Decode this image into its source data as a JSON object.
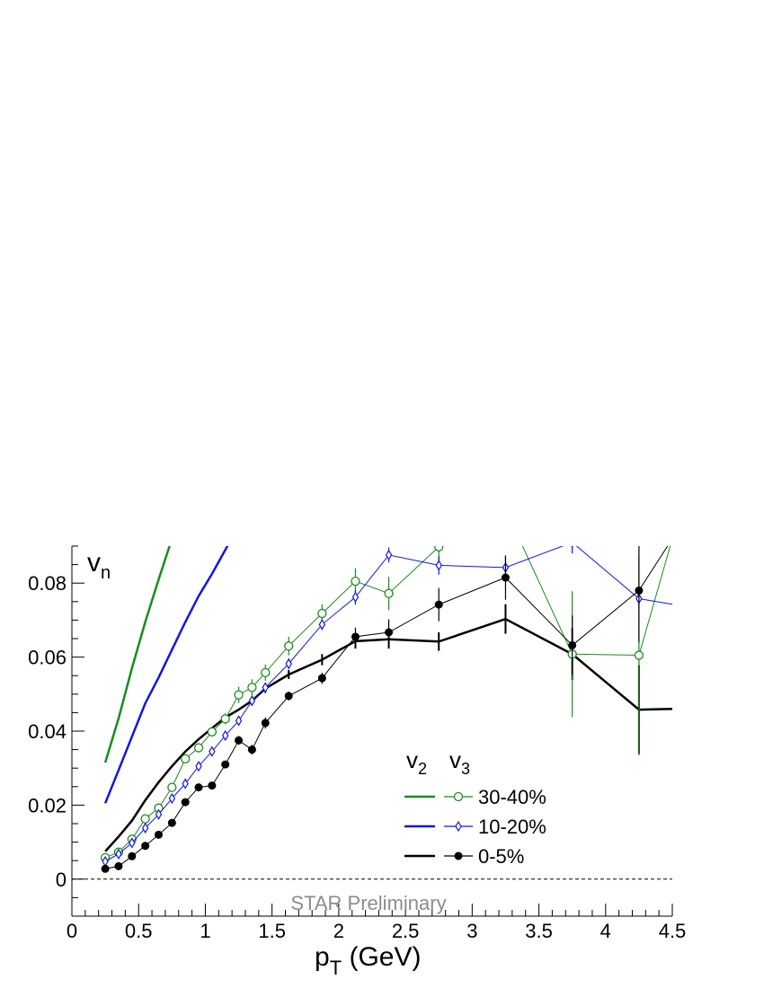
{
  "chart_data": {
    "type": "line",
    "title": "",
    "xlabel_main": "p",
    "xlabel_sub": "T",
    "xlabel_rest": " (GeV)",
    "ylabel_main": "v",
    "ylabel_sub": "n",
    "xlim": [
      0,
      4.5
    ],
    "ylim": [
      -0.01,
      0.09
    ],
    "xticks": [
      0,
      0.5,
      1,
      1.5,
      2,
      2.5,
      3,
      3.5,
      4,
      4.5
    ],
    "xtick_labels": [
      "0",
      "0.5",
      "1",
      "1.5",
      "2",
      "2.5",
      "3",
      "3.5",
      "4",
      "4.5"
    ],
    "yticks": [
      0,
      0.02,
      0.04,
      0.06,
      0.08
    ],
    "ytick_labels": [
      "0",
      "0.02",
      "0.04",
      "0.06",
      "0.08"
    ],
    "zero_line": "dashed",
    "watermark": "STAR Preliminary",
    "legend": {
      "header_v2_main": "v",
      "header_v2_sub": "2",
      "header_v3_main": "v",
      "header_v3_sub": "3",
      "position": "lower-right",
      "entries": [
        "30-40%",
        "10-20%",
        "0-5%"
      ]
    },
    "series": [
      {
        "name": "30-40%",
        "harmonic": "v2",
        "color": "#1a8c1a",
        "x": [
          0.25,
          0.35,
          0.45,
          0.55,
          0.65,
          0.75
        ],
        "y": [
          0.0315,
          0.0435,
          0.057,
          0.0695,
          0.081,
          0.092
        ]
      },
      {
        "name": "10-20%",
        "harmonic": "v2",
        "color": "#1414e6",
        "x": [
          0.25,
          0.35,
          0.45,
          0.55,
          0.65,
          0.75,
          0.85,
          0.95,
          1.05,
          1.15,
          1.25
        ],
        "y": [
          0.0205,
          0.0295,
          0.0385,
          0.0475,
          0.0545,
          0.062,
          0.0695,
          0.0765,
          0.0825,
          0.089,
          0.0955
        ]
      },
      {
        "name": "0-5%",
        "harmonic": "v2",
        "color": "#000000",
        "x": [
          0.25,
          0.35,
          0.45,
          0.55,
          0.65,
          0.75,
          0.85,
          0.95,
          1.05,
          1.15,
          1.25,
          1.35,
          1.45,
          1.625,
          1.875,
          2.125,
          2.375,
          2.75,
          3.25,
          3.75,
          4.25,
          4.5
        ],
        "y": [
          0.0075,
          0.0115,
          0.0158,
          0.0213,
          0.0262,
          0.0305,
          0.0345,
          0.0378,
          0.0408,
          0.0437,
          0.0458,
          0.0482,
          0.0515,
          0.0553,
          0.0593,
          0.0643,
          0.0648,
          0.0642,
          0.0703,
          0.0608,
          0.0458,
          0.046
        ],
        "err": [
          0,
          0,
          0,
          0,
          0,
          0,
          0,
          0,
          0,
          0,
          0,
          0.0012,
          0.0012,
          0.0012,
          0.0015,
          0.002,
          0.0025,
          0.0025,
          0.004,
          0.007,
          0.012,
          0
        ]
      },
      {
        "name": "30-40%",
        "harmonic": "v3",
        "color": "#1a8c1a",
        "marker": "open-circle",
        "x": [
          0.25,
          0.35,
          0.45,
          0.55,
          0.65,
          0.75,
          0.85,
          0.95,
          1.05,
          1.15,
          1.25,
          1.35,
          1.45,
          1.625,
          1.875,
          2.125,
          2.375,
          2.75,
          3.25,
          3.75,
          4.25,
          4.5
        ],
        "y": [
          0.0058,
          0.0073,
          0.0108,
          0.0163,
          0.0192,
          0.0248,
          0.0325,
          0.0355,
          0.0398,
          0.0433,
          0.0498,
          0.0518,
          0.0558,
          0.063,
          0.0718,
          0.0805,
          0.0772,
          0.0898,
          0.1,
          0.0608,
          0.0605,
          0.092
        ],
        "err": [
          0.0004,
          0.0004,
          0.0005,
          0.0006,
          0.0008,
          0.001,
          0.0012,
          0.0012,
          0.0013,
          0.0015,
          0.0022,
          0.0022,
          0.0022,
          0.0025,
          0.0025,
          0.0035,
          0.0045,
          0.005,
          0.01,
          0.017,
          0.027,
          0
        ]
      },
      {
        "name": "10-20%",
        "harmonic": "v3",
        "color": "#1414e6",
        "marker": "open-diamond",
        "x": [
          0.25,
          0.35,
          0.45,
          0.55,
          0.65,
          0.75,
          0.85,
          0.95,
          1.05,
          1.15,
          1.25,
          1.35,
          1.45,
          1.625,
          1.875,
          2.125,
          2.375,
          2.75,
          3.25,
          3.75,
          4.25,
          4.5
        ],
        "y": [
          0.0048,
          0.0068,
          0.0098,
          0.0138,
          0.0175,
          0.0218,
          0.0258,
          0.0305,
          0.0345,
          0.0388,
          0.0428,
          0.0482,
          0.0518,
          0.0582,
          0.0688,
          0.0762,
          0.0876,
          0.0848,
          0.0842,
          0.091,
          0.0758,
          0.0743
        ],
        "err": [
          0.0004,
          0.0004,
          0.0005,
          0.0006,
          0.0006,
          0.0008,
          0.0008,
          0.001,
          0.001,
          0.0012,
          0.0012,
          0.0012,
          0.0012,
          0.0015,
          0.0015,
          0.002,
          0.002,
          0.0025,
          0.003,
          0.003,
          0.003,
          0
        ]
      },
      {
        "name": "0-5%",
        "harmonic": "v3",
        "color": "#000000",
        "marker": "filled-circle",
        "x": [
          0.25,
          0.35,
          0.45,
          0.55,
          0.65,
          0.75,
          0.85,
          0.95,
          1.05,
          1.15,
          1.25,
          1.35,
          1.45,
          1.625,
          1.875,
          2.125,
          2.375,
          2.75,
          3.25,
          3.75,
          4.25,
          4.5
        ],
        "y": [
          0.0028,
          0.0035,
          0.0062,
          0.009,
          0.012,
          0.0152,
          0.0208,
          0.0248,
          0.0253,
          0.031,
          0.0375,
          0.035,
          0.0422,
          0.0495,
          0.0543,
          0.0655,
          0.0667,
          0.0742,
          0.0815,
          0.0632,
          0.078,
          0.092
        ],
        "err": [
          0.0003,
          0.0003,
          0.0004,
          0.0005,
          0.0005,
          0.0006,
          0.0007,
          0.0008,
          0.0009,
          0.001,
          0.0012,
          0.0013,
          0.0015,
          0.0012,
          0.0015,
          0.0025,
          0.0035,
          0.0045,
          0.006,
          0.008,
          0.014,
          0
        ]
      }
    ]
  }
}
